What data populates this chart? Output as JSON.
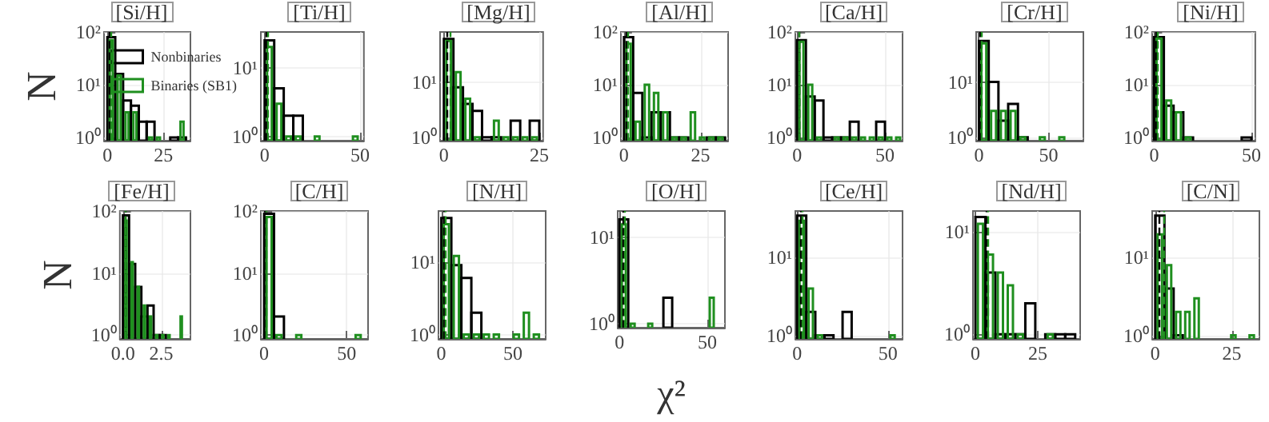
{
  "chart_data": [
    {
      "type": "histogram",
      "title": "[Si/H]",
      "ylabel": "N",
      "log": "y",
      "grid": true,
      "legend": "top right",
      "xlim": [
        -1.5,
        37
      ],
      "xticks": [
        0,
        25
      ],
      "ylim": [
        0.87,
        100
      ],
      "yticks": [
        {
          "value": 1,
          "label": "10⁰"
        },
        {
          "value": 10,
          "label": "10¹"
        },
        {
          "value": 100,
          "label": "10²"
        }
      ],
      "bins": [
        0,
        3.5,
        7,
        10.5,
        14,
        17.5,
        21,
        24.5,
        28,
        31.5,
        35
      ],
      "series": [
        {
          "name": "Nonbinaries",
          "color": "#000000",
          "values": [
            80,
            16,
            5,
            4,
            2,
            2,
            null,
            null,
            1,
            1
          ]
        },
        {
          "name": "Binaries (SB1)",
          "color": "#1f8f1f",
          "values": [
            70,
            15,
            3,
            3,
            null,
            1,
            1,
            null,
            null,
            2
          ]
        }
      ],
      "ref_lines": [
        {
          "axis": "x",
          "value": 1,
          "color": "#000000",
          "line_style": "dashed"
        },
        {
          "axis": "x",
          "value": 1.5,
          "color": "#1f8f1f",
          "line_style": "dashed"
        }
      ]
    },
    {
      "type": "histogram",
      "title": "[Ti/H]",
      "log": "y",
      "grid": true,
      "xlim": [
        -2,
        52
      ],
      "xticks": [
        0,
        50
      ],
      "ylim": [
        0.87,
        33
      ],
      "yticks": [
        {
          "value": 1,
          "label": "10⁰"
        },
        {
          "value": 10,
          "label": "10¹"
        }
      ],
      "bins": [
        0,
        5,
        10,
        15,
        20,
        25,
        30,
        35,
        40,
        45,
        50
      ],
      "series": [
        {
          "color": "#000000",
          "values": [
            25,
            5,
            2,
            2,
            null,
            null,
            null,
            null,
            null,
            null
          ]
        },
        {
          "color": "#1f8f1f",
          "values": [
            20,
            3,
            1,
            1,
            null,
            1,
            null,
            null,
            null,
            1
          ]
        }
      ],
      "ref_lines": [
        {
          "axis": "x",
          "value": 1,
          "color": "#000000",
          "line_style": "dashed"
        },
        {
          "axis": "x",
          "value": 1.5,
          "color": "#1f8f1f",
          "line_style": "dashed"
        }
      ]
    },
    {
      "type": "histogram",
      "title": "[Mg/H]",
      "log": "y",
      "grid": true,
      "xlim": [
        -1,
        26
      ],
      "xticks": [
        0,
        25
      ],
      "ylim": [
        0.87,
        80
      ],
      "yticks": [
        {
          "value": 1,
          "label": "10⁰"
        },
        {
          "value": 10,
          "label": "10¹"
        }
      ],
      "bins": [
        0,
        2.5,
        5,
        7.5,
        10,
        12.5,
        15,
        17.5,
        20,
        22.5,
        25
      ],
      "series": [
        {
          "color": "#000000",
          "values": [
            60,
            8,
            4,
            3,
            1,
            1,
            null,
            2,
            null,
            2
          ]
        },
        {
          "color": "#1f8f1f",
          "values": [
            55,
            15,
            5,
            1,
            null,
            2,
            1,
            1,
            1,
            1
          ]
        }
      ],
      "ref_lines": [
        {
          "axis": "x",
          "value": 0.6,
          "color": "#000000",
          "line_style": "dashed"
        },
        {
          "axis": "x",
          "value": 1.5,
          "color": "#1f8f1f",
          "line_style": "dashed"
        }
      ]
    },
    {
      "type": "histogram",
      "title": "[Al/H]",
      "log": "y",
      "grid": true,
      "xlim": [
        -1,
        34
      ],
      "xticks": [
        0,
        25
      ],
      "ylim": [
        0.87,
        100
      ],
      "yticks": [
        {
          "value": 1,
          "label": "10⁰"
        },
        {
          "value": 10,
          "label": "10¹"
        },
        {
          "value": 100,
          "label": "10²"
        }
      ],
      "bins": [
        0,
        3,
        6,
        9,
        12,
        15,
        18,
        21,
        24,
        27,
        30,
        33
      ],
      "series": [
        {
          "color": "#000000",
          "values": [
            80,
            7,
            1,
            3,
            3,
            1,
            1,
            null,
            null,
            1,
            1
          ]
        },
        {
          "color": "#1f8f1f",
          "values": [
            60,
            2,
            10,
            7,
            3,
            1,
            1,
            3,
            1,
            1,
            1
          ]
        }
      ],
      "ref_lines": [
        {
          "axis": "x",
          "value": 0.8,
          "color": "#000000",
          "line_style": "dashed"
        },
        {
          "axis": "x",
          "value": 1.2,
          "color": "#1f8f1f",
          "line_style": "dashed"
        }
      ]
    },
    {
      "type": "histogram",
      "title": "[Ca/H]",
      "log": "y",
      "grid": true,
      "xlim": [
        -1,
        60
      ],
      "xticks": [
        0,
        50
      ],
      "ylim": [
        0.87,
        100
      ],
      "yticks": [
        {
          "value": 1,
          "label": "10⁰"
        },
        {
          "value": 10,
          "label": "10¹"
        },
        {
          "value": 100,
          "label": "10²"
        }
      ],
      "bins": [
        0,
        5,
        10,
        15,
        20,
        25,
        30,
        35,
        40,
        45,
        50,
        55,
        60
      ],
      "series": [
        {
          "color": "#000000",
          "values": [
            70,
            6,
            5,
            1,
            1,
            1,
            2,
            null,
            null,
            2,
            null,
            null
          ]
        },
        {
          "color": "#1f8f1f",
          "values": [
            65,
            10,
            1,
            null,
            1,
            1,
            1,
            1,
            1,
            1,
            1,
            1
          ]
        }
      ],
      "ref_lines": [
        {
          "axis": "x",
          "value": 1,
          "color": "#000000",
          "line_style": "dashed"
        },
        {
          "axis": "x",
          "value": 1.5,
          "color": "#1f8f1f",
          "line_style": "dashed"
        }
      ]
    },
    {
      "type": "histogram",
      "title": "[Cr/H]",
      "log": "y",
      "grid": true,
      "xlim": [
        -2,
        75
      ],
      "xticks": [
        0,
        50
      ],
      "ylim": [
        0.87,
        80
      ],
      "yticks": [
        {
          "value": 1,
          "label": "10⁰"
        },
        {
          "value": 10,
          "label": "10¹"
        }
      ],
      "bins": [
        0,
        7,
        14,
        21,
        28,
        35,
        42,
        49,
        56,
        63,
        70
      ],
      "series": [
        {
          "color": "#000000",
          "values": [
            55,
            10,
            2,
            4,
            1,
            null,
            null,
            null,
            null,
            null
          ]
        },
        {
          "color": "#1f8f1f",
          "values": [
            50,
            3,
            3,
            3,
            1,
            null,
            1,
            null,
            1,
            null
          ]
        }
      ],
      "ref_lines": [
        {
          "axis": "x",
          "value": 1,
          "color": "#000000",
          "line_style": "dashed"
        },
        {
          "axis": "x",
          "value": 1.5,
          "color": "#1f8f1f",
          "line_style": "dashed"
        }
      ]
    },
    {
      "type": "histogram",
      "title": "[Ni/H]",
      "log": "y",
      "grid": true,
      "xlim": [
        -1,
        52
      ],
      "xticks": [
        0,
        50
      ],
      "ylim": [
        0.87,
        100
      ],
      "yticks": [
        {
          "value": 1,
          "label": "10⁰"
        },
        {
          "value": 10,
          "label": "10¹"
        },
        {
          "value": 100,
          "label": "10²"
        }
      ],
      "bins": [
        0,
        5,
        10,
        15,
        20,
        25,
        30,
        35,
        40,
        45,
        50
      ],
      "series": [
        {
          "color": "#000000",
          "values": [
            80,
            4,
            3,
            1,
            null,
            null,
            null,
            null,
            null,
            1
          ]
        },
        {
          "color": "#1f8f1f",
          "values": [
            75,
            5,
            3,
            1,
            null,
            null,
            null,
            null,
            null,
            null
          ]
        }
      ],
      "ref_lines": [
        {
          "axis": "x",
          "value": 1,
          "color": "#000000",
          "line_style": "dashed"
        },
        {
          "axis": "x",
          "value": 1.5,
          "color": "#1f8f1f",
          "line_style": "dashed"
        }
      ]
    },
    {
      "type": "histogram",
      "title": "[Fe/H]",
      "ylabel": "N",
      "log": "y",
      "grid": true,
      "xlim": [
        -0.2,
        4.4
      ],
      "xticks": [
        {
          "value": 0,
          "label": "0.0"
        },
        2.5
      ],
      "ylim": [
        0.87,
        100
      ],
      "yticks": [
        {
          "value": 1,
          "label": "10⁰"
        },
        {
          "value": 10,
          "label": "10¹"
        },
        {
          "value": 100,
          "label": "10²"
        }
      ],
      "bins": [
        0,
        0.4,
        0.8,
        1.2,
        1.6,
        2,
        2.4,
        2.8,
        3.2,
        3.6,
        4
      ],
      "series": [
        {
          "color": "#000000",
          "values": [
            85,
            14,
            6,
            2,
            3,
            1,
            1,
            null,
            null,
            null
          ]
        },
        {
          "color": "#1f8f1f",
          "values": [
            70,
            15,
            6,
            3,
            2,
            1,
            1,
            1,
            null,
            2
          ]
        }
      ],
      "ref_lines": [
        {
          "axis": "x",
          "value": 0.1,
          "color": "#000000",
          "line_style": "dashed"
        },
        {
          "axis": "x",
          "value": 0.15,
          "color": "#1f8f1f",
          "line_style": "dashed"
        }
      ]
    },
    {
      "type": "histogram",
      "title": "[C/H]",
      "log": "y",
      "grid": true,
      "xlim": [
        -2,
        63
      ],
      "xticks": [
        0,
        50
      ],
      "ylim": [
        0.87,
        100
      ],
      "yticks": [
        {
          "value": 1,
          "label": "10⁰"
        },
        {
          "value": 10,
          "label": "10¹"
        },
        {
          "value": 100,
          "label": "10²"
        }
      ],
      "bins": [
        0,
        6,
        12,
        18,
        24,
        30,
        36,
        42,
        48,
        54,
        60
      ],
      "series": [
        {
          "color": "#000000",
          "values": [
            90,
            2,
            null,
            null,
            null,
            null,
            null,
            null,
            null,
            null
          ]
        },
        {
          "color": "#1f8f1f",
          "values": [
            80,
            1,
            null,
            1,
            null,
            null,
            null,
            null,
            null,
            1
          ]
        }
      ],
      "ref_lines": [
        {
          "axis": "x",
          "value": 0.5,
          "color": "#000000",
          "line_style": "dashed"
        },
        {
          "axis": "x",
          "value": 1,
          "color": "#1f8f1f",
          "line_style": "dashed"
        }
      ]
    },
    {
      "type": "histogram",
      "title": "[N/H]",
      "log": "y",
      "grid": true,
      "xlim": [
        -2,
        73
      ],
      "xticks": [
        0,
        50
      ],
      "ylim": [
        0.87,
        50
      ],
      "yticks": [
        {
          "value": 1,
          "label": "10⁰"
        },
        {
          "value": 10,
          "label": "10¹"
        }
      ],
      "bins": [
        0,
        7,
        14,
        21,
        28,
        35,
        42,
        49,
        56,
        63,
        70
      ],
      "series": [
        {
          "color": "#000000",
          "values": [
            40,
            9,
            6,
            2,
            null,
            null,
            null,
            null,
            null,
            null
          ]
        },
        {
          "color": "#1f8f1f",
          "values": [
            33,
            12,
            1,
            1,
            1,
            1,
            null,
            1,
            2,
            1
          ]
        }
      ],
      "ref_lines": [
        {
          "axis": "x",
          "value": 2,
          "color": "#000000",
          "line_style": "dashed"
        },
        {
          "axis": "x",
          "value": 3,
          "color": "#1f8f1f",
          "line_style": "dashed"
        }
      ]
    },
    {
      "type": "histogram",
      "title": "[O/H]",
      "xlabel": "χ²",
      "log": "y",
      "grid": true,
      "xlim": [
        -1,
        60
      ],
      "xticks": [
        0,
        50
      ],
      "ylim": [
        0.9,
        20
      ],
      "yticks": [
        {
          "value": 1,
          "label": "10⁰"
        },
        {
          "value": 10,
          "label": "10¹"
        }
      ],
      "bins": [
        0,
        5,
        10,
        15,
        20,
        25,
        30,
        35,
        40,
        45,
        50,
        55,
        60
      ],
      "series": [
        {
          "color": "#000000",
          "values": [
            16,
            null,
            null,
            null,
            null,
            2,
            null,
            null,
            null,
            null,
            null,
            null
          ]
        },
        {
          "color": "#1f8f1f",
          "values": [
            14,
            1,
            null,
            1,
            null,
            null,
            null,
            null,
            null,
            null,
            2,
            null
          ]
        }
      ],
      "ref_lines": [
        {
          "axis": "x",
          "value": 2,
          "color": "#000000",
          "line_style": "dashed"
        },
        {
          "axis": "x",
          "value": 3,
          "color": "#1f8f1f",
          "line_style": "dashed"
        }
      ]
    },
    {
      "type": "histogram",
      "title": "[Ce/H]",
      "log": "y",
      "grid": true,
      "xlim": [
        -1,
        58
      ],
      "xticks": [
        0,
        50
      ],
      "ylim": [
        0.9,
        40
      ],
      "yticks": [
        {
          "value": 1,
          "label": "10⁰"
        },
        {
          "value": 10,
          "label": "10¹"
        }
      ],
      "bins": [
        0,
        5,
        10,
        15,
        20,
        25,
        30,
        35,
        40,
        45,
        50,
        55
      ],
      "series": [
        {
          "color": "#000000",
          "values": [
            35,
            2,
            1,
            1,
            null,
            2,
            null,
            null,
            null,
            null,
            null
          ]
        },
        {
          "color": "#1f8f1f",
          "values": [
            30,
            4,
            1,
            null,
            null,
            null,
            null,
            null,
            null,
            null,
            1
          ]
        }
      ],
      "ref_lines": [
        {
          "axis": "x",
          "value": 1.5,
          "color": "#000000",
          "line_style": "dashed"
        },
        {
          "axis": "x",
          "value": 2.5,
          "color": "#1f8f1f",
          "line_style": "dashed"
        }
      ]
    },
    {
      "type": "histogram",
      "title": "[Nd/H]",
      "log": "y",
      "grid": true,
      "xlim": [
        -1,
        42
      ],
      "xticks": [
        0,
        25
      ],
      "ylim": [
        0.9,
        16
      ],
      "yticks": [
        {
          "value": 1,
          "label": "10⁰"
        },
        {
          "value": 10,
          "label": "10¹"
        }
      ],
      "bins": [
        0,
        4,
        8,
        12,
        16,
        20,
        24,
        28,
        32,
        36,
        40
      ],
      "series": [
        {
          "color": "#000000",
          "values": [
            14,
            4,
            1,
            1,
            1,
            2,
            null,
            1,
            1,
            1
          ]
        },
        {
          "color": "#1f8f1f",
          "values": [
            12,
            6,
            4,
            3,
            1,
            null,
            null,
            1,
            null,
            null
          ]
        }
      ],
      "ref_lines": [
        {
          "axis": "x",
          "value": 4.5,
          "color": "#000000",
          "line_style": "dashed"
        },
        {
          "axis": "x",
          "value": 5,
          "color": "#1f8f1f",
          "line_style": "dashed"
        }
      ]
    },
    {
      "type": "histogram",
      "title": "[C/N]",
      "log": "y",
      "grid": true,
      "xlim": [
        -1,
        34
      ],
      "xticks": [
        0,
        25
      ],
      "ylim": [
        0.9,
        40
      ],
      "yticks": [
        {
          "value": 1,
          "label": "10⁰"
        },
        {
          "value": 10,
          "label": "10¹"
        }
      ],
      "bins": [
        0,
        3,
        6,
        9,
        12,
        15,
        18,
        21,
        24,
        27,
        30,
        33
      ],
      "series": [
        {
          "color": "#000000",
          "values": [
            35,
            4,
            1,
            null,
            null,
            null,
            null,
            null,
            null,
            null,
            null
          ]
        },
        {
          "color": "#1f8f1f",
          "values": [
            20,
            8,
            2,
            2,
            3,
            null,
            null,
            null,
            1,
            null,
            1
          ]
        }
      ],
      "ref_lines": [
        {
          "axis": "x",
          "value": 1,
          "color": "#000000",
          "line_style": "dashed"
        },
        {
          "axis": "x",
          "value": 3,
          "color": "#1f8f1f",
          "line_style": "dashed"
        }
      ]
    }
  ]
}
